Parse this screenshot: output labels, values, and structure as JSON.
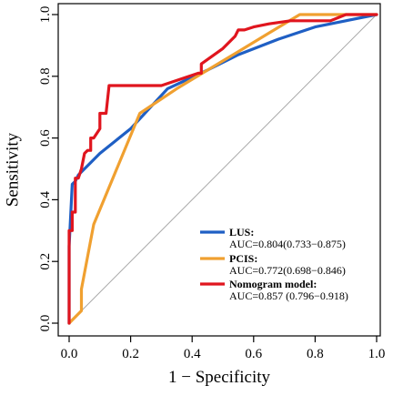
{
  "chart_data": {
    "type": "line",
    "title": "",
    "xlabel": "1 − Specificity",
    "ylabel": "Sensitivity",
    "xlim": [
      0,
      1
    ],
    "ylim": [
      0,
      1
    ],
    "xticks": [
      "0.0",
      "0.2",
      "0.4",
      "0.6",
      "0.8",
      "1.0"
    ],
    "yticks": [
      "0.0",
      "0.2",
      "0.4",
      "0.6",
      "0.8",
      "1.0"
    ],
    "grid": false,
    "legend_position": "bottom-right",
    "reference_line": {
      "color": "#a8a8a8",
      "from": [
        0,
        0
      ],
      "to": [
        1,
        1
      ]
    },
    "series": [
      {
        "name": "LUS:",
        "auc_text": "AUC=0.804(0.733−0.875)",
        "color": "#1f5fc4",
        "points": [
          [
            0,
            0
          ],
          [
            0,
            0.25
          ],
          [
            0.01,
            0.45
          ],
          [
            0.02,
            0.46
          ],
          [
            0.03,
            0.48
          ],
          [
            0.1,
            0.55
          ],
          [
            0.2,
            0.63
          ],
          [
            0.32,
            0.76
          ],
          [
            0.45,
            0.82
          ],
          [
            0.55,
            0.87
          ],
          [
            0.68,
            0.92
          ],
          [
            0.8,
            0.96
          ],
          [
            0.9,
            0.98
          ],
          [
            1,
            1
          ]
        ]
      },
      {
        "name": "PCIS:",
        "auc_text": "AUC=0.772(0.698−0.846)",
        "color": "#f0a030",
        "points": [
          [
            0,
            0
          ],
          [
            0.04,
            0.04
          ],
          [
            0.04,
            0.11
          ],
          [
            0.08,
            0.32
          ],
          [
            0.23,
            0.68
          ],
          [
            0.35,
            0.76
          ],
          [
            0.45,
            0.82
          ],
          [
            0.55,
            0.88
          ],
          [
            0.65,
            0.94
          ],
          [
            0.75,
            1
          ],
          [
            1,
            1
          ]
        ]
      },
      {
        "name": "Nomogram model:",
        "auc_text": "AUC=0.857 (0.796−0.918)",
        "color": "#e0151e",
        "points": [
          [
            0,
            0
          ],
          [
            0,
            0.3
          ],
          [
            0.01,
            0.3
          ],
          [
            0.01,
            0.36
          ],
          [
            0.02,
            0.36
          ],
          [
            0.02,
            0.4
          ],
          [
            0.02,
            0.47
          ],
          [
            0.03,
            0.47
          ],
          [
            0.04,
            0.5
          ],
          [
            0.05,
            0.55
          ],
          [
            0.06,
            0.56
          ],
          [
            0.07,
            0.56
          ],
          [
            0.07,
            0.6
          ],
          [
            0.08,
            0.6
          ],
          [
            0.1,
            0.63
          ],
          [
            0.1,
            0.68
          ],
          [
            0.12,
            0.68
          ],
          [
            0.13,
            0.77
          ],
          [
            0.2,
            0.77
          ],
          [
            0.3,
            0.77
          ],
          [
            0.42,
            0.81
          ],
          [
            0.43,
            0.81
          ],
          [
            0.43,
            0.84
          ],
          [
            0.5,
            0.89
          ],
          [
            0.54,
            0.93
          ],
          [
            0.55,
            0.95
          ],
          [
            0.57,
            0.95
          ],
          [
            0.6,
            0.96
          ],
          [
            0.65,
            0.97
          ],
          [
            0.72,
            0.98
          ],
          [
            0.78,
            0.98
          ],
          [
            0.85,
            0.98
          ],
          [
            0.9,
            1
          ],
          [
            1,
            1
          ]
        ]
      }
    ]
  }
}
